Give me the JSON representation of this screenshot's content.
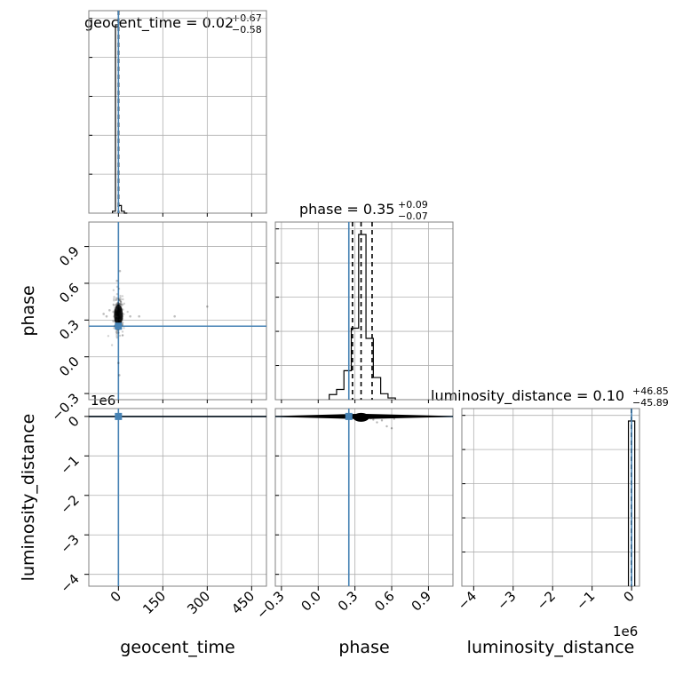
{
  "chart_data": {
    "type": "corner",
    "parameters": [
      "geocent_time",
      "phase",
      "luminosity_distance"
    ],
    "truth_color": "#4682b4",
    "panel_titles": [
      {
        "param": "geocent_time",
        "prefix": "geocent_time = ",
        "median": "0.02",
        "plus": "+0.67",
        "minus": "−0.58"
      },
      {
        "param": "phase",
        "prefix": "phase = ",
        "median": "0.35",
        "plus": "+0.09",
        "minus": "−0.07"
      },
      {
        "param": "luminosity_distance",
        "prefix": "luminosity_distance = ",
        "median": "0.10",
        "plus": "+46.85",
        "minus": "−45.89"
      }
    ],
    "axes": {
      "geocent_time": {
        "range": [
          -100,
          500
        ],
        "ticks": [
          0,
          150,
          300,
          450
        ],
        "tick_labels": [
          "0",
          "150",
          "300",
          "450"
        ],
        "truth": 0,
        "quantiles": [
          -0.56,
          0.02,
          0.69
        ]
      },
      "phase": {
        "range": [
          -0.35,
          1.1
        ],
        "ticks": [
          -0.3,
          0.0,
          0.3,
          0.6,
          0.9
        ],
        "tick_labels": [
          "−0.3",
          "0.0",
          "0.3",
          "0.6",
          "0.9"
        ],
        "truth": 0.25,
        "quantiles": [
          0.28,
          0.35,
          0.44
        ]
      },
      "luminosity_distance": {
        "range": [
          -4.3,
          0.2
        ],
        "ticks": [
          -4,
          -3,
          -2,
          -1,
          0
        ],
        "tick_labels": [
          "−4",
          "−3",
          "−2",
          "−1",
          "0"
        ],
        "truth": 0.0,
        "offset_label": "1e6",
        "quantiles": [
          -4.589e-05,
          1e-07,
          4.695e-05
        ]
      }
    },
    "histograms": {
      "geocent_time": {
        "bin_edges": [
          -20,
          -10,
          0,
          10,
          20,
          30
        ],
        "counts": [
          0.05,
          4.9,
          0.2,
          0.05,
          0.0
        ]
      },
      "phase": {
        "bin_edges": [
          0.09,
          0.15,
          0.21,
          0.27,
          0.33,
          0.39,
          0.45,
          0.51,
          0.57,
          0.63
        ],
        "counts": [
          0.3,
          0.6,
          1.7,
          4.2,
          9.7,
          3.6,
          1.3,
          0.35,
          0.1
        ]
      },
      "luminosity_distance": {
        "bin_edges": [
          -0.08,
          0.0,
          0.08
        ],
        "counts": [
          1.0,
          1.0
        ]
      }
    },
    "scatter": {
      "phase_vs_geocent_time": {
        "center": [
          0,
          0.34
        ],
        "spread": [
          8,
          0.07
        ],
        "outliers": [
          [
            -50,
            0.35
          ],
          [
            -40,
            0.33
          ],
          [
            -30,
            0.38
          ],
          [
            40,
            0.33
          ],
          [
            70,
            0.33
          ],
          [
            190,
            0.33
          ],
          [
            300,
            0.41
          ],
          [
            5,
            0.7
          ],
          [
            -5,
            0.62
          ],
          [
            0,
            -0.05
          ],
          [
            3,
            -0.15
          ]
        ]
      }
    },
    "grid": true,
    "legend": "none"
  }
}
